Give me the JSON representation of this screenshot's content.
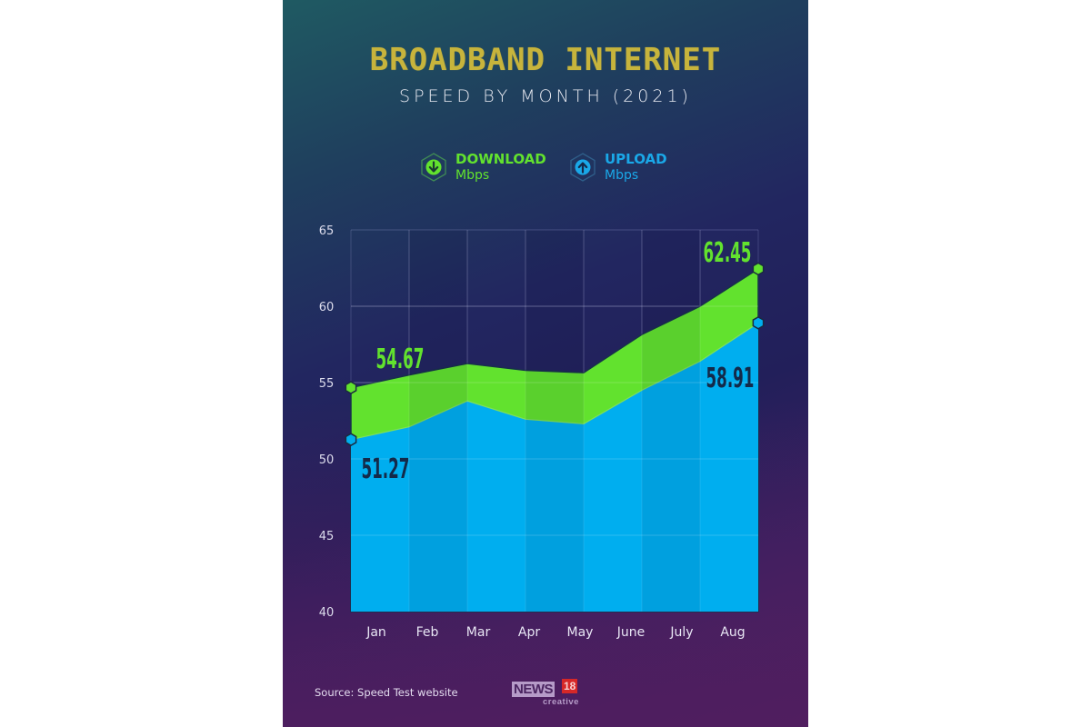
{
  "poster": {
    "title": "BROADBAND INTERNET",
    "subtitle": "SPEED BY MONTH (2021)",
    "legend": [
      {
        "label": "DOWNLOAD",
        "unit": "Mbps",
        "icon": "arrow-down-hex-icon",
        "color": "#62e22e"
      },
      {
        "label": "UPLOAD",
        "unit": "Mbps",
        "icon": "arrow-up-hex-icon",
        "color": "#1aa8e8"
      }
    ],
    "source": "Source: Speed Test website",
    "logo": {
      "brand": "NEWS",
      "number": "18",
      "tagline": "creative"
    }
  },
  "chart_data": {
    "type": "area",
    "title": "BROADBAND INTERNET",
    "subtitle": "SPEED BY MONTH (2021)",
    "xlabel": "",
    "ylabel": "Mbps",
    "categories": [
      "Jan",
      "Feb",
      "Mar",
      "Apr",
      "May",
      "June",
      "July",
      "Aug"
    ],
    "ylim": [
      40,
      65
    ],
    "yticks": [
      40,
      45,
      50,
      55,
      60,
      65
    ],
    "grid": true,
    "legend_position": "top",
    "series": [
      {
        "name": "DOWNLOAD Mbps",
        "color": "#62e22e",
        "values": [
          54.67,
          55.5,
          56.25,
          55.8,
          55.65,
          58.15,
          60.0,
          62.45
        ]
      },
      {
        "name": "UPLOAD Mbps",
        "color": "#00aeef",
        "values": [
          51.27,
          52.1,
          53.8,
          52.6,
          52.3,
          54.5,
          56.4,
          58.91
        ]
      }
    ],
    "annotations": [
      {
        "series": "DOWNLOAD Mbps",
        "category": "Jan",
        "text": "54.67"
      },
      {
        "series": "UPLOAD Mbps",
        "category": "Jan",
        "text": "51.27"
      },
      {
        "series": "DOWNLOAD Mbps",
        "category": "Aug",
        "text": "62.45"
      },
      {
        "series": "UPLOAD Mbps",
        "category": "Aug",
        "text": "58.91"
      }
    ]
  }
}
